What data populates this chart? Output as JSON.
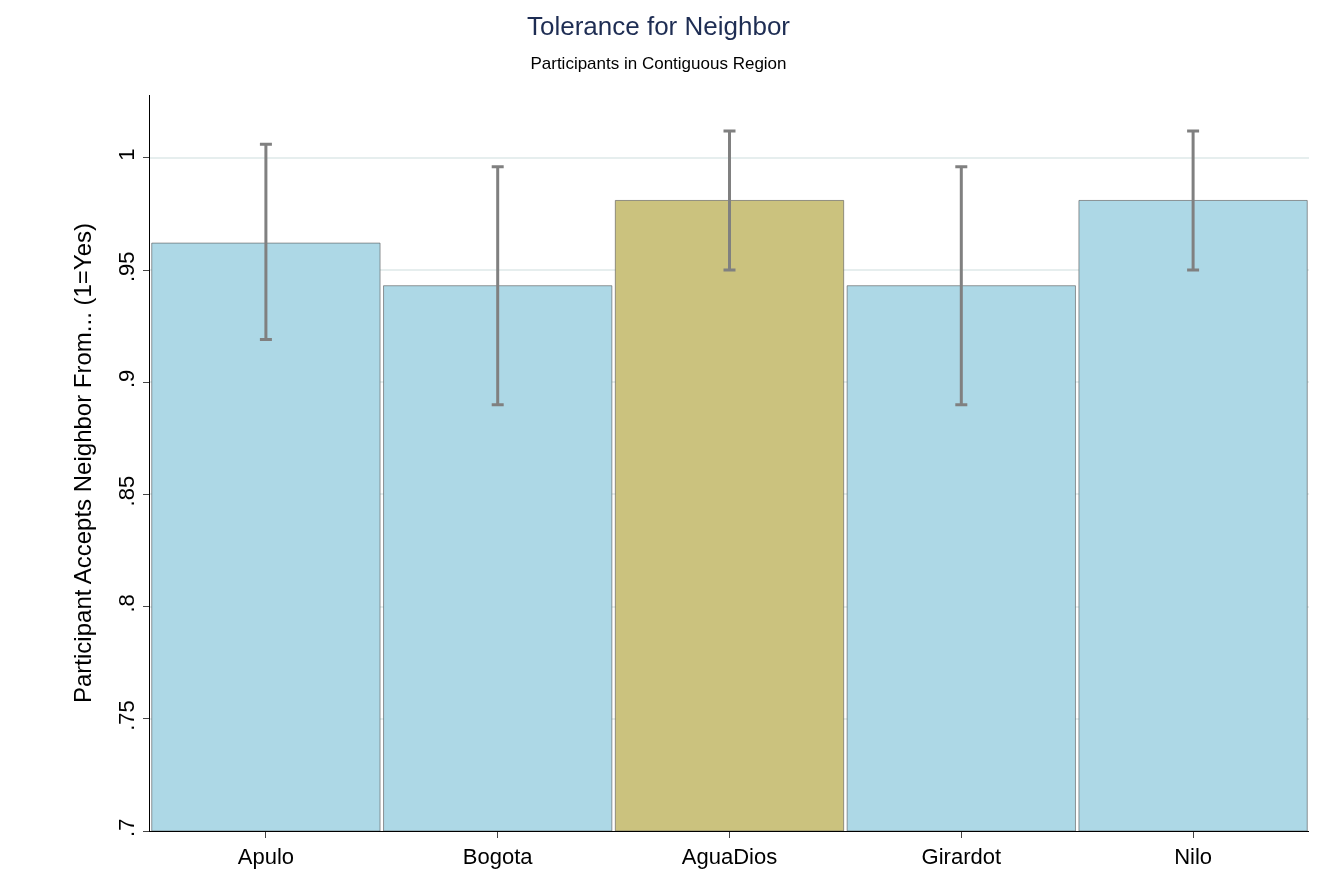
{
  "chart_data": {
    "type": "bar",
    "title": "Tolerance for Neighbor",
    "subtitle": "Participants in Contiguous Region",
    "ylabel": "Participant Accepts Neighbor From... (1=Yes)",
    "categories": [
      "Apulo",
      "Bogota",
      "AguaDios",
      "Girardot",
      "Nilo"
    ],
    "values": [
      0.962,
      0.943,
      0.981,
      0.943,
      0.981
    ],
    "colors": [
      "#add8e6",
      "#add8e6",
      "#cbc27e",
      "#add8e6",
      "#add8e6"
    ],
    "errors": [
      [
        0.919,
        1.006
      ],
      [
        0.89,
        0.996
      ],
      [
        0.95,
        1.012
      ],
      [
        0.89,
        0.996
      ],
      [
        0.95,
        1.012
      ]
    ],
    "ylim": [
      0.7,
      1.028
    ],
    "yticks": [
      {
        "value": 0.7,
        "label": ".7"
      },
      {
        "value": 0.75,
        "label": ".75"
      },
      {
        "value": 0.8,
        "label": ".8"
      },
      {
        "value": 0.85,
        "label": ".85"
      },
      {
        "value": 0.9,
        "label": ".9"
      },
      {
        "value": 0.95,
        "label": ".95"
      },
      {
        "value": 1,
        "label": "1"
      }
    ],
    "grid": "y"
  }
}
